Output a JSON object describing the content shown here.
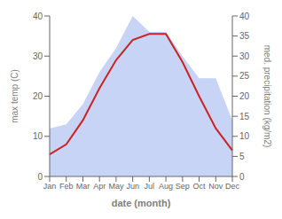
{
  "chart_data": {
    "type": "line",
    "categories": [
      "Jan",
      "Feb",
      "Mar",
      "Apr",
      "May",
      "Jun",
      "Jul",
      "Aug",
      "Sep",
      "Oct",
      "Nov",
      "Dec"
    ],
    "x_label": "date (month)",
    "y_label": "max temp (C)",
    "y2_label": "med. precipitation (kg/m2)",
    "ylim": [
      0,
      40
    ],
    "yticks": [
      0,
      10,
      20,
      30,
      40
    ],
    "y2lim": [
      0,
      40
    ],
    "y2ticks": [
      0,
      5,
      10,
      15,
      20,
      25,
      30,
      35,
      40
    ],
    "grid": false,
    "series": [
      {
        "type": "area",
        "axis": "y2",
        "color": "#c8d4f5",
        "values": [
          12.0,
          13.0,
          18.0,
          26.0,
          32.0,
          40.0,
          36.0,
          36.0,
          30.0,
          24.5,
          24.5,
          14.0
        ]
      },
      {
        "type": "line",
        "color": "#cc2222",
        "values": [
          5.5,
          8.0,
          14.0,
          22.0,
          29.0,
          34.0,
          35.5,
          35.5,
          28.5,
          20.0,
          12.0,
          6.5
        ]
      }
    ]
  }
}
